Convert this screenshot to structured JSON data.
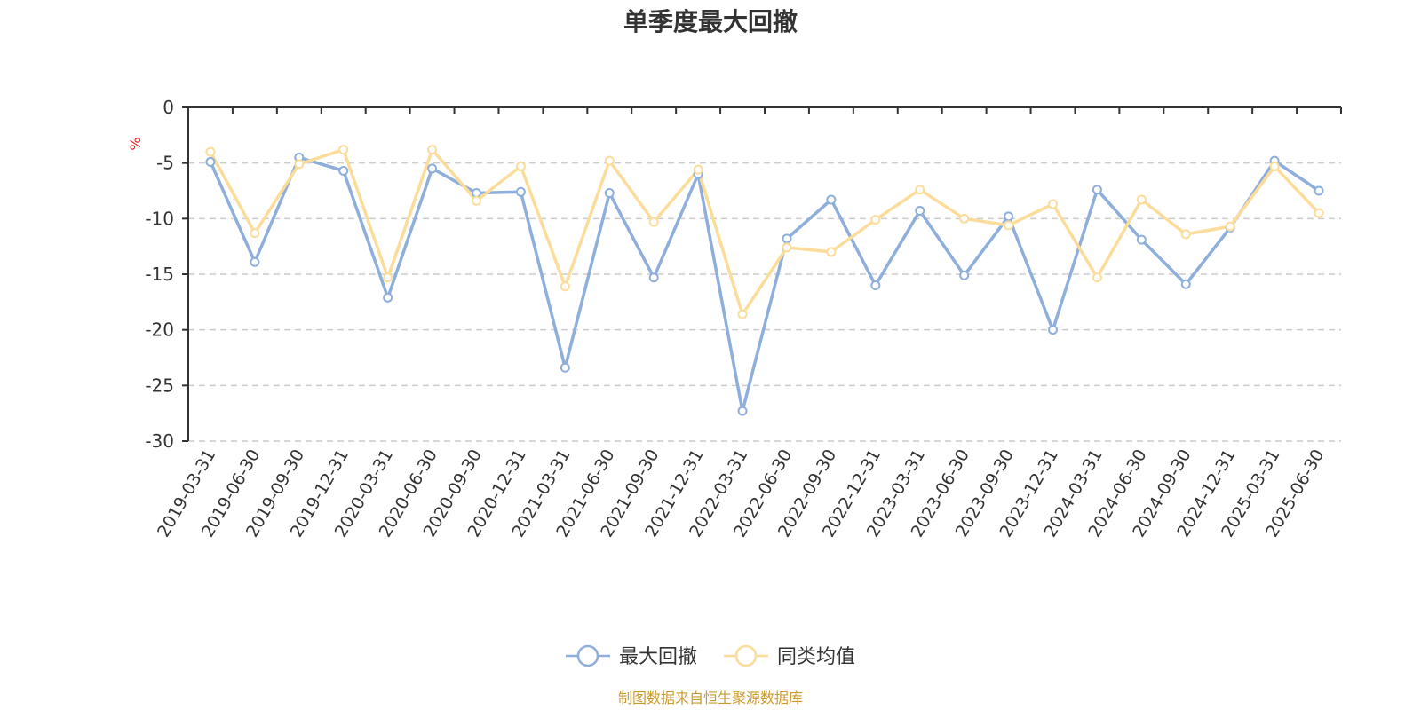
{
  "chart_data": {
    "type": "line",
    "title": "单季度最大回撤",
    "ylabel": "%",
    "ylim": [
      -30,
      0
    ],
    "yticks": [
      0,
      -5,
      -10,
      -15,
      -20,
      -25,
      -30
    ],
    "categories": [
      "2019-03-31",
      "2019-06-30",
      "2019-09-30",
      "2019-12-31",
      "2020-03-31",
      "2020-06-30",
      "2020-09-30",
      "2020-12-31",
      "2021-03-31",
      "2021-06-30",
      "2021-09-30",
      "2021-12-31",
      "2022-03-31",
      "2022-06-30",
      "2022-09-30",
      "2022-12-31",
      "2023-03-31",
      "2023-06-30",
      "2023-09-30",
      "2023-12-31",
      "2024-03-31",
      "2024-06-30",
      "2024-09-30",
      "2024-12-31",
      "2025-03-31",
      "2025-06-30"
    ],
    "series": [
      {
        "name": "最大回撤",
        "color": "#8eaedb",
        "values": [
          -4.9,
          -13.9,
          -4.5,
          -5.7,
          -17.1,
          -5.5,
          -7.7,
          -7.6,
          -23.4,
          -7.7,
          -15.3,
          -6.0,
          -27.3,
          -11.8,
          -8.3,
          -16.0,
          -9.3,
          -15.1,
          -9.8,
          -20.0,
          -7.4,
          -11.9,
          -15.9,
          -10.8,
          -4.8,
          -7.5
        ]
      },
      {
        "name": "同类均值",
        "color": "#fbdc9a",
        "values": [
          -4.0,
          -11.3,
          -5.1,
          -3.8,
          -15.3,
          -3.8,
          -8.4,
          -5.3,
          -16.1,
          -4.8,
          -10.3,
          -5.6,
          -18.6,
          -12.6,
          -13.0,
          -10.1,
          -7.4,
          -10.0,
          -10.6,
          -8.7,
          -15.3,
          -8.3,
          -11.4,
          -10.7,
          -5.3,
          -9.5
        ]
      }
    ],
    "grid": true,
    "legend_position": "bottom-center"
  },
  "source_text": "制图数据来自恒生聚源数据库",
  "colors": {
    "axis": "#333333",
    "grid": "#cccccc",
    "unit": "#e02020",
    "source": "#c99a2e"
  }
}
